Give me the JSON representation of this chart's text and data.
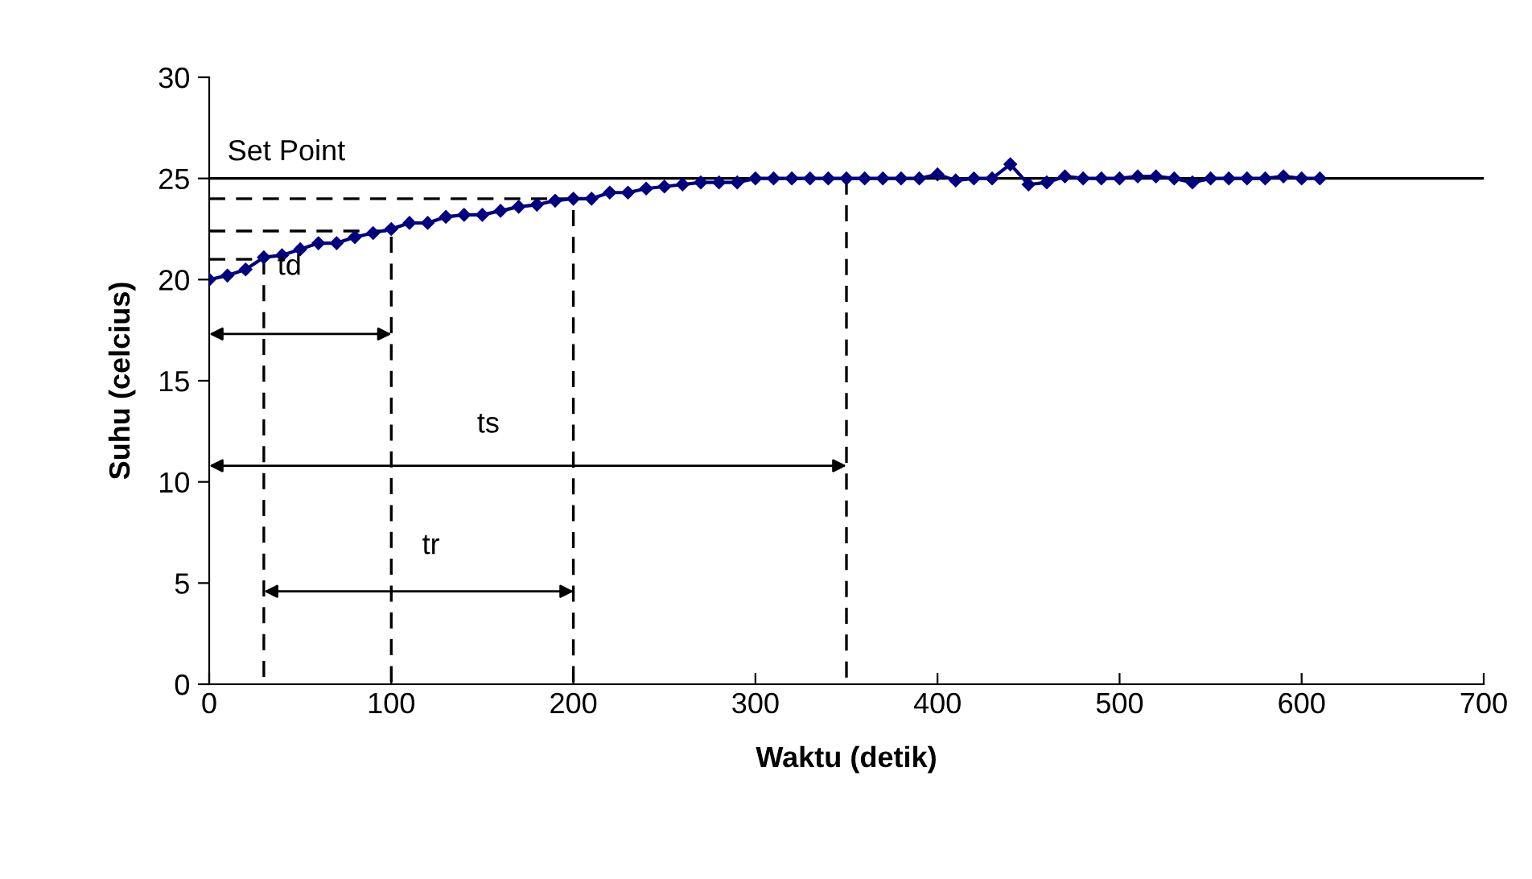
{
  "chart_data": {
    "type": "line",
    "xlabel": "Waktu (detik)",
    "ylabel": "Suhu (celcius)",
    "xlim": [
      0,
      700
    ],
    "ylim": [
      0,
      30
    ],
    "xticks": [
      0,
      100,
      200,
      300,
      400,
      500,
      600,
      700
    ],
    "yticks": [
      0,
      5,
      10,
      15,
      20,
      25,
      30
    ],
    "grid": false,
    "marker": "diamond",
    "line_style": "solid",
    "series": [
      {
        "color": "#000080",
        "x": [
          0,
          10,
          20,
          30,
          40,
          50,
          60,
          70,
          80,
          90,
          100,
          110,
          120,
          130,
          140,
          150,
          160,
          170,
          180,
          190,
          200,
          210,
          220,
          230,
          240,
          250,
          260,
          270,
          280,
          290,
          300,
          310,
          320,
          330,
          340,
          350,
          360,
          370,
          380,
          390,
          400,
          410,
          420,
          430,
          440,
          450,
          460,
          470,
          480,
          490,
          500,
          510,
          520,
          530,
          540,
          550,
          560,
          570,
          580,
          590,
          600,
          610
        ],
        "values": [
          20.0,
          20.2,
          20.5,
          21.1,
          21.2,
          21.5,
          21.8,
          21.8,
          22.1,
          22.3,
          22.5,
          22.8,
          22.8,
          23.1,
          23.2,
          23.2,
          23.4,
          23.6,
          23.7,
          23.9,
          24.0,
          24.0,
          24.3,
          24.3,
          24.5,
          24.6,
          24.7,
          24.8,
          24.8,
          24.8,
          25.0,
          25.0,
          25.0,
          25.0,
          25.0,
          25.0,
          25.0,
          25.0,
          25.0,
          25.0,
          25.2,
          24.9,
          25.0,
          25.0,
          25.7,
          24.7,
          24.8,
          25.1,
          25.0,
          25.0,
          25.0,
          25.1,
          25.1,
          25.0,
          24.8,
          25.0,
          25.0,
          25.0,
          25.0,
          25.1,
          25.0,
          25.0
        ]
      },
      {
        "type": "line",
        "color": "#000000",
        "line_style": "dashed",
        "marker": "none",
        "x": [
          0,
          30,
          30
        ],
        "values": [
          21,
          21,
          0
        ]
      },
      {
        "type": "line",
        "color": "#000000",
        "line_style": "dashed",
        "marker": "none",
        "x": [
          0,
          100,
          100
        ],
        "values": [
          22.4,
          22.4,
          0
        ]
      },
      {
        "type": "line",
        "color": "#000000",
        "line_style": "dashed",
        "marker": "none",
        "x": [
          0,
          200,
          200
        ],
        "values": [
          24,
          24,
          0
        ]
      },
      {
        "type": "line",
        "color": "#000000",
        "line_style": "dashed",
        "marker": "none",
        "x": [
          350,
          350
        ],
        "values": [
          25,
          0
        ]
      }
    ],
    "ref_lines": [
      {
        "axis": "y",
        "value": 25,
        "label": "Set Point",
        "color": "#000000"
      }
    ],
    "annotations": [
      "td",
      "ts",
      "tr"
    ]
  }
}
